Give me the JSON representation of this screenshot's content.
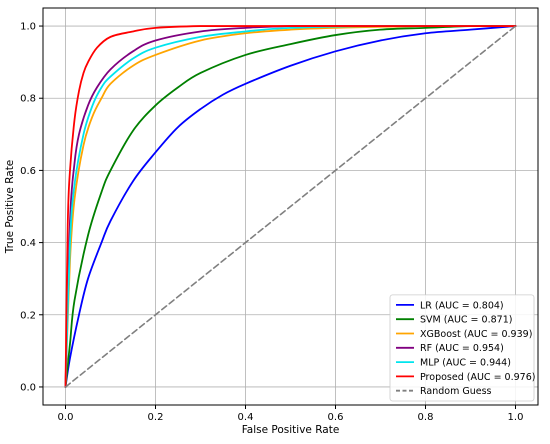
{
  "chart_data": {
    "type": "line",
    "title": "",
    "xlabel": "False Positive Rate",
    "ylabel": "True Positive Rate",
    "xlim": [
      -0.05,
      1.05
    ],
    "ylim": [
      -0.05,
      1.05
    ],
    "grid": true,
    "legend_placement": "bottom-right",
    "x_ticks": [
      0.0,
      0.2,
      0.4,
      0.6,
      0.8,
      1.0
    ],
    "y_ticks": [
      0.0,
      0.2,
      0.4,
      0.6,
      0.8,
      1.0
    ],
    "x_tick_labels": [
      "0.0",
      "0.2",
      "0.4",
      "0.6",
      "0.8",
      "1.0"
    ],
    "y_tick_labels": [
      "0.0",
      "0.2",
      "0.4",
      "0.6",
      "0.8",
      "1.0"
    ],
    "series": [
      {
        "name": "LR (AUC = 0.804)",
        "color": "#0000ff",
        "x": [
          0,
          0.01,
          0.03,
          0.05,
          0.08,
          0.1,
          0.15,
          0.2,
          0.25,
          0.3,
          0.35,
          0.4,
          0.5,
          0.6,
          0.7,
          0.8,
          0.9,
          1.0
        ],
        "y": [
          0,
          0.08,
          0.2,
          0.3,
          0.4,
          0.46,
          0.57,
          0.65,
          0.72,
          0.77,
          0.81,
          0.84,
          0.89,
          0.93,
          0.96,
          0.98,
          0.99,
          1.0
        ]
      },
      {
        "name": "SVM (AUC = 0.871)",
        "color": "#008000",
        "x": [
          0,
          0.01,
          0.02,
          0.05,
          0.08,
          0.1,
          0.15,
          0.2,
          0.25,
          0.3,
          0.4,
          0.5,
          0.6,
          0.7,
          0.8,
          0.9,
          1.0
        ],
        "y": [
          0,
          0.12,
          0.24,
          0.42,
          0.54,
          0.6,
          0.71,
          0.78,
          0.83,
          0.87,
          0.92,
          0.95,
          0.975,
          0.99,
          0.995,
          1.0,
          1.0
        ]
      },
      {
        "name": "XGBoost (AUC = 0.939)",
        "color": "#ffa500",
        "x": [
          0,
          0.01,
          0.02,
          0.04,
          0.06,
          0.08,
          0.1,
          0.15,
          0.2,
          0.3,
          0.4,
          0.5,
          0.6,
          0.8,
          1.0
        ],
        "y": [
          0,
          0.35,
          0.52,
          0.67,
          0.75,
          0.8,
          0.84,
          0.89,
          0.92,
          0.96,
          0.98,
          0.99,
          0.995,
          1.0,
          1.0
        ]
      },
      {
        "name": "RF (AUC = 0.954)",
        "color": "#800080",
        "x": [
          0,
          0.01,
          0.02,
          0.03,
          0.05,
          0.07,
          0.1,
          0.15,
          0.2,
          0.3,
          0.4,
          0.5,
          0.7,
          1.0
        ],
        "y": [
          0,
          0.46,
          0.62,
          0.7,
          0.78,
          0.83,
          0.88,
          0.93,
          0.96,
          0.985,
          0.995,
          1.0,
          1.0,
          1.0
        ]
      },
      {
        "name": "MLP (AUC = 0.944)",
        "color": "#00e5ee",
        "x": [
          0,
          0.01,
          0.02,
          0.04,
          0.06,
          0.08,
          0.1,
          0.15,
          0.2,
          0.3,
          0.4,
          0.5,
          0.7,
          1.0
        ],
        "y": [
          0,
          0.4,
          0.56,
          0.7,
          0.78,
          0.83,
          0.86,
          0.91,
          0.94,
          0.97,
          0.985,
          0.995,
          1.0,
          1.0
        ]
      },
      {
        "name": "Proposed (AUC = 0.976)",
        "color": "#ff0000",
        "x": [
          0,
          0.005,
          0.01,
          0.02,
          0.03,
          0.04,
          0.05,
          0.07,
          0.1,
          0.15,
          0.2,
          0.3,
          0.4,
          0.6,
          1.0
        ],
        "y": [
          0,
          0.45,
          0.6,
          0.74,
          0.82,
          0.87,
          0.9,
          0.94,
          0.97,
          0.985,
          0.995,
          1.0,
          1.0,
          1.0,
          1.0
        ]
      },
      {
        "name": "Random Guess",
        "color": "#808080",
        "dashed": true,
        "x": [
          0,
          1
        ],
        "y": [
          0,
          1
        ]
      }
    ]
  }
}
